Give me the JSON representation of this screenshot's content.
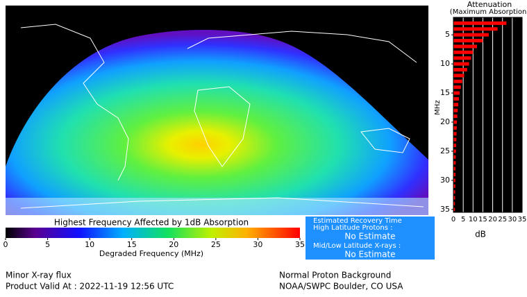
{
  "map": {
    "colorbar": {
      "title": "Highest Frequency Affected by 1dB Absorption",
      "label": "Degraded Frequency (MHz)",
      "lim": [
        0,
        35
      ],
      "ticks": [
        0,
        5,
        10,
        15,
        20,
        25,
        30,
        35
      ]
    }
  },
  "chart_data": {
    "type": "hbar",
    "title": "Attenuation",
    "subtitle": "(Maximum Absorption)",
    "xlabel": "dB",
    "ylabel": "MHz",
    "y": [
      3,
      4,
      5,
      6,
      7,
      8,
      9,
      10,
      11,
      12,
      13,
      14,
      15,
      16,
      17,
      18,
      19,
      20,
      21,
      22,
      23,
      24,
      25,
      26,
      27,
      28,
      29,
      30,
      31,
      32,
      33,
      34,
      35
    ],
    "values": [
      27,
      22.5,
      18,
      15,
      12,
      10,
      9,
      8,
      7,
      5.5,
      4.5,
      3.8,
      3.2,
      2.8,
      2.5,
      2.2,
      2,
      1.8,
      1.7,
      1.6,
      1.5,
      1.4,
      1.3,
      1.2,
      1.2,
      1.1,
      1.1,
      1,
      1,
      0.9,
      0.9,
      0.8,
      0.8
    ],
    "color": "#ff0000",
    "xlim": [
      0,
      35
    ],
    "xticks": [
      0,
      5,
      10,
      15,
      20,
      25,
      30,
      35
    ],
    "ylim": [
      2,
      35.5
    ],
    "yticks": [
      5,
      10,
      15,
      20,
      25,
      30,
      35
    ],
    "y_inverted": true,
    "grid": true
  },
  "info_box": {
    "title": "Estimated Recovery Time",
    "high_latitude_label": "High Latitude Protons :",
    "high_latitude_value": "No Estimate",
    "mid_low_label": "Mid/Low Latitude X-rays :",
    "mid_low_value": "No Estimate"
  },
  "footer": {
    "xray_status": "Minor X-ray flux",
    "valid_at": "Product Valid At : 2022-11-19 12:56 UTC",
    "proton_status": "Normal Proton Background",
    "source": "NOAA/SWPC Boulder, CO USA"
  }
}
